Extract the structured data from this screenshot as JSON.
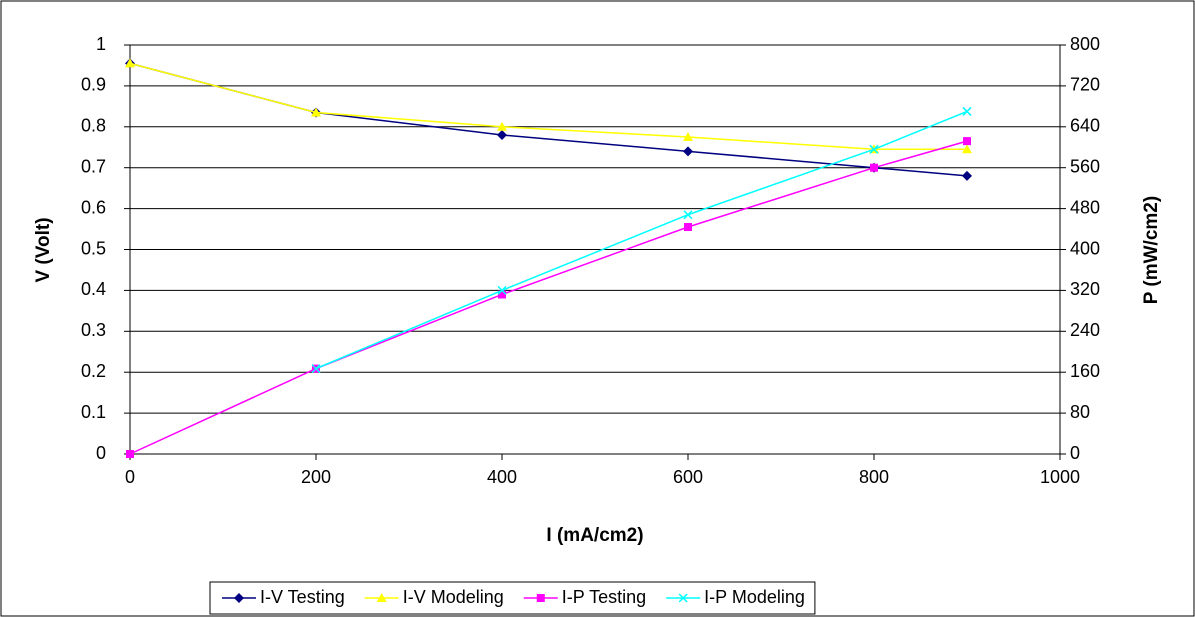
{
  "chart_data": {
    "type": "line",
    "x_label": "I (mA/cm2)",
    "y_label": "V (Volt)",
    "y2_label": "P (mW/cm2)",
    "x": [
      0,
      200,
      400,
      600,
      800,
      900
    ],
    "series": [
      {
        "name": "I-V Testing",
        "color": "#000080",
        "marker": "diamond",
        "values": [
          0.955,
          0.835,
          0.78,
          0.74,
          0.7,
          0.68
        ]
      },
      {
        "name": "I-V Modeling",
        "color": "#ffff00",
        "marker": "triangle",
        "values": [
          0.955,
          0.835,
          0.8,
          0.775,
          0.745,
          0.745
        ]
      },
      {
        "name": "I-P Testing",
        "color": "#ff00ff",
        "marker": "square",
        "axis": "y2",
        "values": [
          0,
          167,
          312,
          444,
          560,
          612
        ]
      },
      {
        "name": "I-P Modeling",
        "color": "#00ffff",
        "marker": "x",
        "axis": "y2",
        "values": [
          null,
          167,
          320,
          468,
          596,
          670
        ]
      }
    ],
    "xlim": [
      0,
      1000
    ],
    "xticks": [
      0,
      200,
      400,
      600,
      800,
      1000
    ],
    "ylim": [
      0,
      1
    ],
    "yticks": [
      0,
      0.1,
      0.2,
      0.3,
      0.4,
      0.5,
      0.6,
      0.7,
      0.8,
      0.9,
      1
    ],
    "y2lim": [
      0,
      800
    ],
    "y2ticks": [
      0,
      80,
      160,
      240,
      320,
      400,
      480,
      560,
      640,
      720,
      800
    ],
    "grid": true,
    "legend": "bottom"
  }
}
